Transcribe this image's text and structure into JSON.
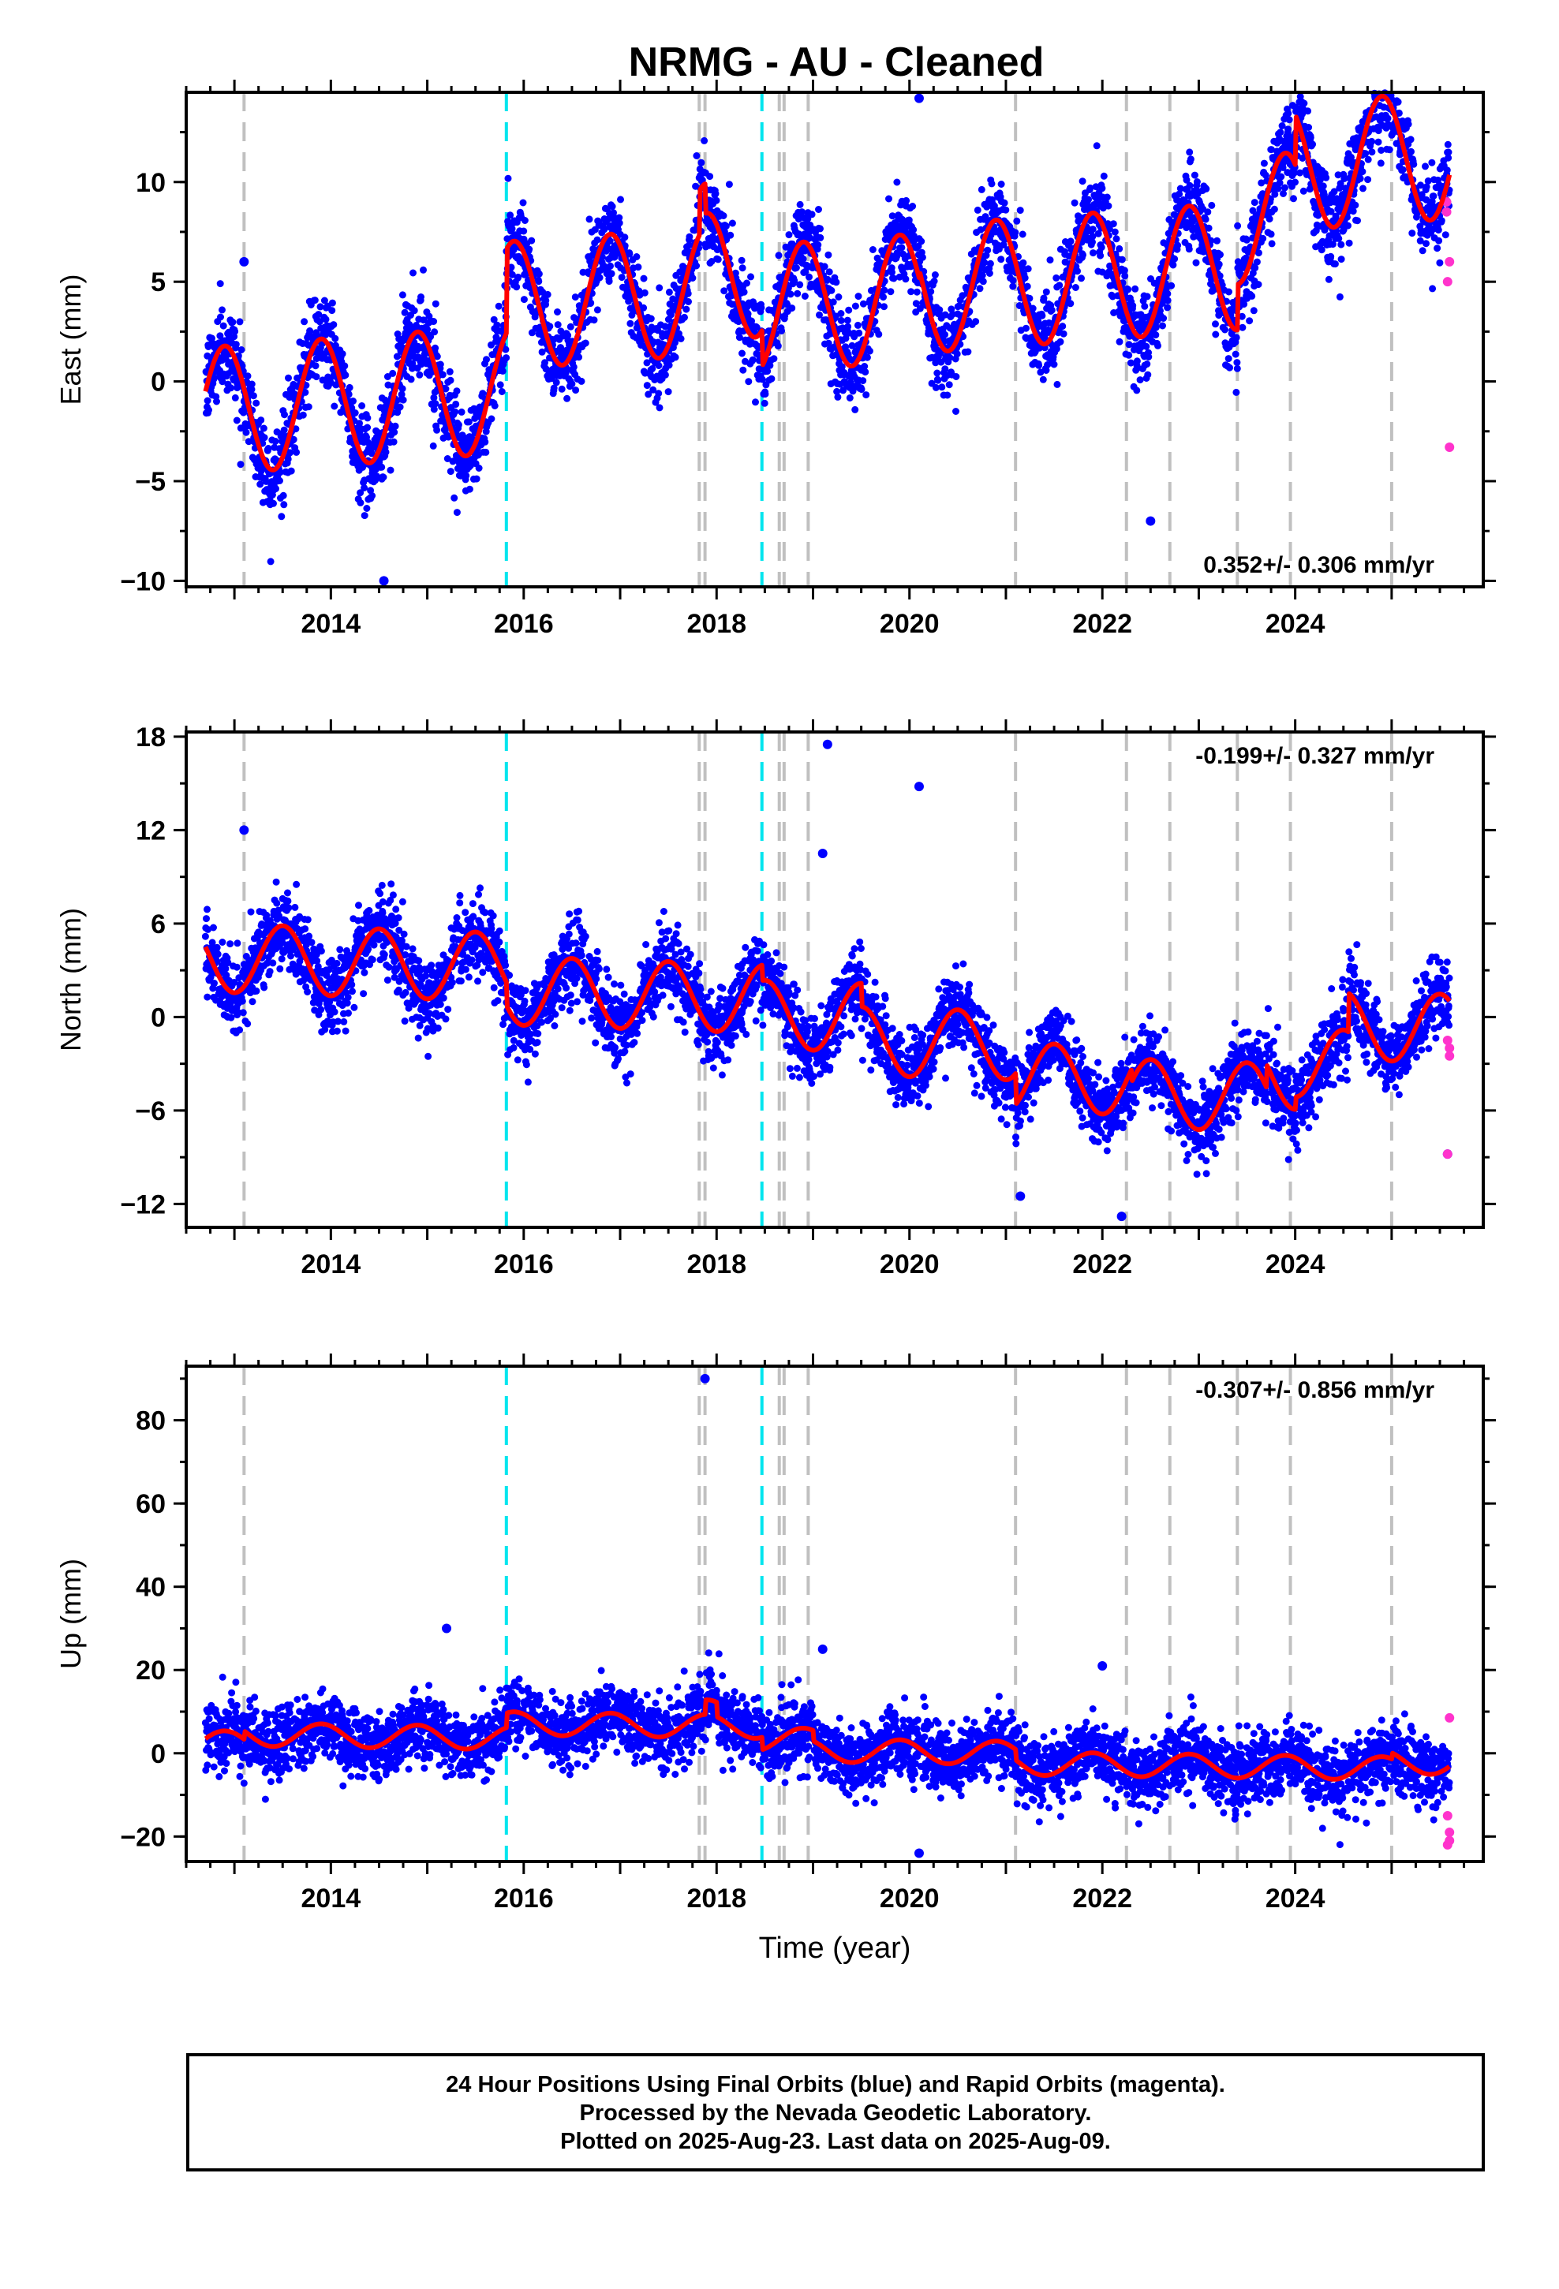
{
  "title": "NRMG  - AU - Cleaned",
  "footer": {
    "line1": "24 Hour Positions Using Final Orbits (blue) and Rapid Orbits (magenta).",
    "line2": "Processed by the Nevada Geodetic Laboratory.",
    "line3": "Plotted on 2025-Aug-23. Last data on 2025-Aug-09."
  },
  "colors": {
    "final": "#0000ff",
    "rapid": "#ff33cc",
    "model": "#ff0000",
    "equipment_change": "#c0c0c0",
    "earthquake": "#00e5ee"
  },
  "chart_data": [
    {
      "type": "scatter",
      "ylabel": "East (mm)",
      "xlim": [
        2012.5,
        2025.95
      ],
      "ylim": [
        -10.3,
        14.5
      ],
      "yticks": [
        -10,
        -5,
        0,
        5,
        10
      ],
      "xticks": [
        2014,
        2016,
        2018,
        2020,
        2022,
        2024
      ],
      "rate": "0.352+/- 0.306 mm/yr",
      "rate_position": "bottom-right",
      "model": {
        "start": 2012.7,
        "end": 2025.6,
        "start_value": -0.5,
        "trend": 0.352,
        "annual_amplitude": 3.2,
        "annual_peak": 2012.9,
        "offsets": [
          [
            2015.82,
            4.2
          ],
          [
            2017.82,
            2.2
          ],
          [
            2017.88,
            -1.5
          ],
          [
            2018.47,
            -1.8
          ],
          [
            2020.1,
            0.4
          ],
          [
            2023.4,
            2.3
          ],
          [
            2024.0,
            2.5
          ]
        ]
      },
      "scatter_sigma": 1.1,
      "outliers": [
        [
          2013.1,
          6.0
        ],
        [
          2014.55,
          -10.0
        ],
        [
          2020.1,
          14.2
        ],
        [
          2022.5,
          -7.0
        ],
        [
          2024.55,
          11.0
        ],
        [
          2025.1,
          11.5
        ]
      ],
      "rapid_points": [
        [
          2025.57,
          9.0
        ],
        [
          2025.57,
          8.5
        ],
        [
          2025.6,
          6.0
        ],
        [
          2025.58,
          5.0
        ],
        [
          2025.6,
          -3.3
        ]
      ]
    },
    {
      "type": "scatter",
      "ylabel": "North (mm)",
      "xlim": [
        2012.5,
        2025.95
      ],
      "ylim": [
        -13.5,
        18.3
      ],
      "yticks": [
        -12,
        -6,
        0,
        6,
        12,
        18
      ],
      "xticks": [
        2014,
        2016,
        2018,
        2020,
        2022,
        2024
      ],
      "rate": "-0.199+/- 0.327 mm/yr",
      "rate_position": "top-right",
      "model": {
        "start": 2012.7,
        "end": 2025.6,
        "start_value": 4.5,
        "trend": -0.199,
        "annual_amplitude": 2.2,
        "annual_peak": 2013.5,
        "offsets": [
          [
            2015.82,
            -1.5
          ],
          [
            2018.47,
            -1.0
          ],
          [
            2019.5,
            -1.5
          ],
          [
            2021.1,
            -2.0
          ],
          [
            2022.3,
            -0.8
          ],
          [
            2023.7,
            1.5
          ],
          [
            2024.0,
            0.8
          ],
          [
            2024.55,
            2.5
          ]
        ]
      },
      "scatter_sigma": 1.2,
      "outliers": [
        [
          2013.1,
          12.0
        ],
        [
          2019.15,
          17.5
        ],
        [
          2019.1,
          10.5
        ],
        [
          2020.1,
          14.8
        ],
        [
          2021.15,
          -11.5
        ],
        [
          2022.2,
          -12.8
        ],
        [
          2025.58,
          -8.8
        ]
      ],
      "rapid_points": [
        [
          2025.58,
          -1.5
        ],
        [
          2025.6,
          -2.0
        ],
        [
          2025.6,
          -2.5
        ],
        [
          2025.58,
          -8.8
        ]
      ]
    },
    {
      "type": "scatter",
      "ylabel": "Up (mm)",
      "xlabel": "Time (year)",
      "xlim": [
        2012.5,
        2025.95
      ],
      "ylim": [
        -26,
        93
      ],
      "yticks": [
        -20,
        0,
        20,
        40,
        60,
        80
      ],
      "xticks": [
        2014,
        2016,
        2018,
        2020,
        2022,
        2024
      ],
      "rate": "-0.307+/- 0.856 mm/yr",
      "rate_position": "top-right",
      "model": {
        "start": 2012.7,
        "end": 2025.6,
        "start_value": 3.5,
        "trend": -0.307,
        "annual_amplitude": 2.8,
        "annual_peak": 2012.9,
        "offsets": [
          [
            2013.1,
            2.0
          ],
          [
            2015.82,
            3.5
          ],
          [
            2017.88,
            3.5
          ],
          [
            2018.0,
            -3.5
          ],
          [
            2018.47,
            -3.0
          ],
          [
            2019.0,
            -2.5
          ],
          [
            2021.1,
            -2.5
          ],
          [
            2025.0,
            1.5
          ]
        ]
      },
      "scatter_sigma": 4.0,
      "outliers": [
        [
          2017.88,
          90.0
        ],
        [
          2015.2,
          30.0
        ],
        [
          2019.1,
          25.0
        ],
        [
          2020.1,
          -24.0
        ],
        [
          2022.0,
          21.0
        ]
      ],
      "rapid_points": [
        [
          2025.6,
          8.5
        ],
        [
          2025.58,
          -15.0
        ],
        [
          2025.6,
          -19.0
        ],
        [
          2025.6,
          -21.0
        ],
        [
          2025.58,
          -22.0
        ]
      ]
    }
  ],
  "equipment_changes": [
    2013.1,
    2017.82,
    2017.88,
    2018.65,
    2018.7,
    2018.95,
    2021.1,
    2022.25,
    2022.7,
    2023.4,
    2023.95,
    2025.0
  ],
  "earthquakes": [
    2015.82,
    2018.47
  ]
}
